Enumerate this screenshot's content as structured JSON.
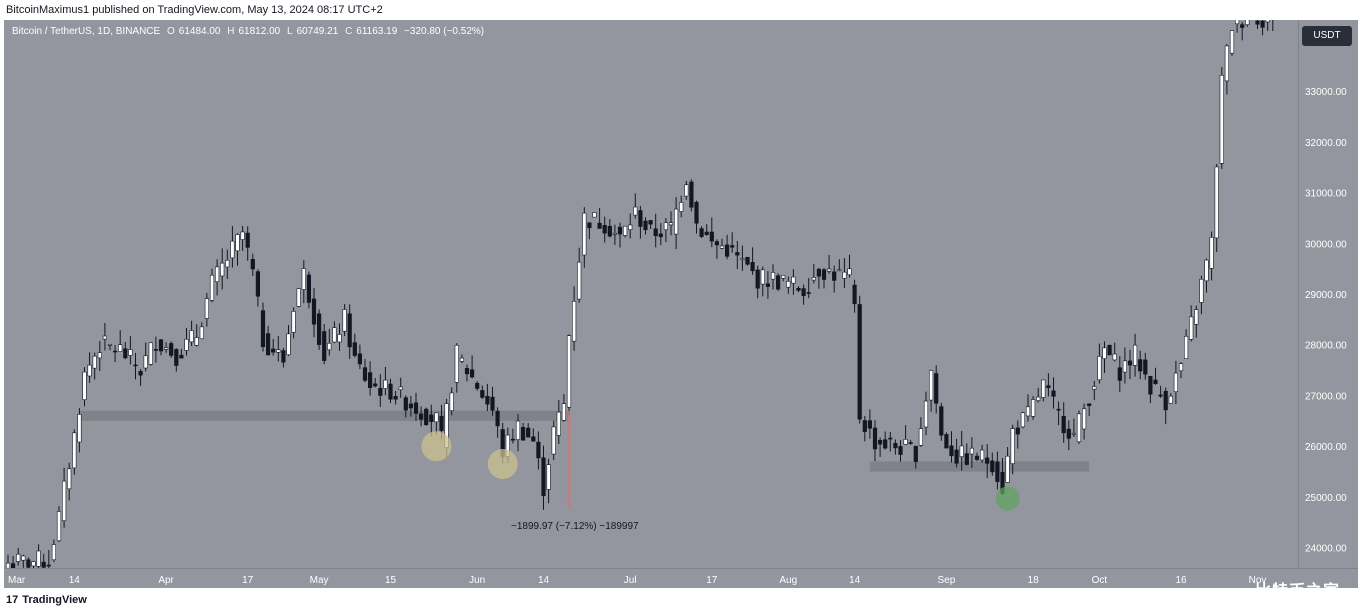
{
  "header": {
    "published_line": "BitcoinMaximus1 published on TradingView.com, May 13, 2024 08:17 UTC+2"
  },
  "legend": {
    "symbol": "Bitcoin / TetherUS, 1D, BINANCE",
    "o_label": "O",
    "o_value": "61484.00",
    "h_label": "H",
    "h_value": "61812.00",
    "l_label": "L",
    "l_value": "60749.21",
    "c_label": "C",
    "c_value": "61163.19",
    "change": "−320.80 (−0.52%)"
  },
  "currency": "USDT",
  "footer": {
    "logo_mark": "17",
    "logo_text": "TradingView"
  },
  "watermark": "比特币之家",
  "colors": {
    "background": "#93969e",
    "up_candle": "#ffffff",
    "down_candle": "#131722",
    "support_zone": "#7d7f86",
    "measure_line": "#c77b7b",
    "circle_yellow": "#c9c08f",
    "circle_green": "#5fa35f"
  },
  "chart_data": {
    "type": "candlestick",
    "symbol": "Bitcoin / TetherUS",
    "interval": "1D",
    "ylim": [
      23600,
      34400
    ],
    "y_ticks": [
      24000,
      25000,
      26000,
      27000,
      28000,
      29000,
      30000,
      31000,
      32000,
      33000
    ],
    "y_tick_labels": [
      "24000.00",
      "25000.00",
      "26000.00",
      "27000.00",
      "28000.00",
      "29000.00",
      "30000.00",
      "31000.00",
      "32000.00",
      "33000.00"
    ],
    "x_tick_labels": [
      "Mar",
      "14",
      "Apr",
      "17",
      "May",
      "15",
      "Jun",
      "14",
      "Jul",
      "17",
      "Aug",
      "14",
      "Sep",
      "18",
      "Oct",
      "16",
      "Nov"
    ],
    "x_tick_days": [
      0,
      13,
      31,
      47,
      61,
      75,
      92,
      105,
      122,
      138,
      153,
      166,
      184,
      201,
      214,
      230,
      245
    ],
    "ohlc_anchors": [
      [
        0,
        23700
      ],
      [
        8,
        23750
      ],
      [
        10,
        24600
      ],
      [
        13,
        26200
      ],
      [
        15,
        27400
      ],
      [
        18,
        28000
      ],
      [
        22,
        27900
      ],
      [
        26,
        27500
      ],
      [
        29,
        28100
      ],
      [
        33,
        27800
      ],
      [
        37,
        28200
      ],
      [
        40,
        29200
      ],
      [
        43,
        29700
      ],
      [
        46,
        30200
      ],
      [
        48,
        29400
      ],
      [
        50,
        28100
      ],
      [
        54,
        27700
      ],
      [
        56,
        28800
      ],
      [
        58,
        29400
      ],
      [
        62,
        27800
      ],
      [
        66,
        28500
      ],
      [
        68,
        27700
      ],
      [
        71,
        27200
      ],
      [
        75,
        27100
      ],
      [
        78,
        26900
      ],
      [
        81,
        26700
      ],
      [
        84,
        26500
      ],
      [
        85,
        26100
      ],
      [
        88,
        27800
      ],
      [
        92,
        27200
      ],
      [
        95,
        26700
      ],
      [
        97,
        25900
      ],
      [
        100,
        26400
      ],
      [
        103,
        26100
      ],
      [
        105,
        25200
      ],
      [
        107,
        26300
      ],
      [
        109,
        26800
      ],
      [
        110,
        28200
      ],
      [
        113,
        30500
      ],
      [
        117,
        30400
      ],
      [
        120,
        30100
      ],
      [
        123,
        30600
      ],
      [
        126,
        30200
      ],
      [
        130,
        30300
      ],
      [
        133,
        31300
      ],
      [
        135,
        30400
      ],
      [
        138,
        30000
      ],
      [
        141,
        29900
      ],
      [
        144,
        29600
      ],
      [
        147,
        29300
      ],
      [
        150,
        29300
      ],
      [
        153,
        29200
      ],
      [
        156,
        29100
      ],
      [
        159,
        29500
      ],
      [
        162,
        29400
      ],
      [
        165,
        29300
      ],
      [
        166,
        28700
      ],
      [
        167,
        26600
      ],
      [
        170,
        26100
      ],
      [
        174,
        26000
      ],
      [
        178,
        25900
      ],
      [
        181,
        27500
      ],
      [
        183,
        26200
      ],
      [
        186,
        25800
      ],
      [
        190,
        25800
      ],
      [
        193,
        25700
      ],
      [
        195,
        25200
      ],
      [
        197,
        26300
      ],
      [
        200,
        26600
      ],
      [
        203,
        27200
      ],
      [
        206,
        26600
      ],
      [
        209,
        26200
      ],
      [
        212,
        27000
      ],
      [
        215,
        27900
      ],
      [
        218,
        27500
      ],
      [
        221,
        27800
      ],
      [
        224,
        27200
      ],
      [
        227,
        26900
      ],
      [
        230,
        27600
      ],
      [
        232,
        28400
      ],
      [
        234,
        29200
      ],
      [
        236,
        30000
      ],
      [
        238,
        33200
      ],
      [
        240,
        34300
      ],
      [
        243,
        34500
      ],
      [
        248,
        34400
      ]
    ],
    "support_zones": [
      {
        "from_day": 14,
        "to_day": 110,
        "low": 26500,
        "high": 26700
      },
      {
        "from_day": 169,
        "to_day": 212,
        "low": 25500,
        "high": 25700
      }
    ],
    "measure": {
      "day": 110,
      "from_price": 26700,
      "to_price": 24800,
      "label": "−1899.97 (−7.12%) −189997"
    },
    "circles": [
      {
        "day": 84,
        "price": 26000,
        "color": "yellow"
      },
      {
        "day": 97,
        "price": 25650,
        "color": "yellow"
      },
      {
        "day": 196,
        "price": 24970,
        "color": "green"
      }
    ]
  }
}
